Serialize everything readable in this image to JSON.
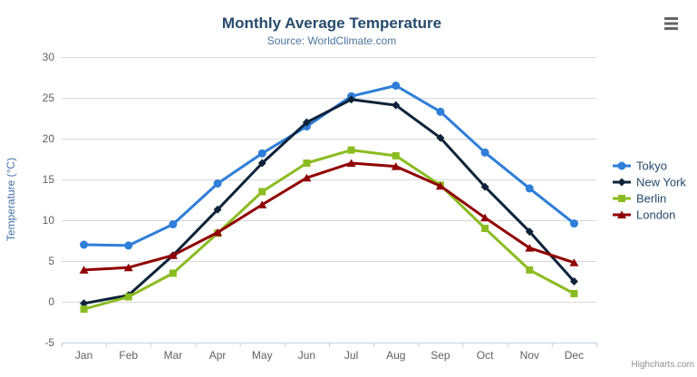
{
  "header": {
    "title": "Monthly Average Temperature",
    "subtitle": "Source: WorldClimate.com"
  },
  "menu": {
    "context_button_icon": "hamburger-icon"
  },
  "credits": {
    "label": "Highcharts.com"
  },
  "chart_data": {
    "type": "line",
    "title": "Monthly Average Temperature",
    "subtitle": "Source: WorldClimate.com",
    "categories": [
      "Jan",
      "Feb",
      "Mar",
      "Apr",
      "May",
      "Jun",
      "Jul",
      "Aug",
      "Sep",
      "Oct",
      "Nov",
      "Dec"
    ],
    "xlabel": "",
    "ylabel": "Temperature (°C)",
    "ylim": [
      -5,
      30
    ],
    "ytick_step": 5,
    "yticks": [
      -5,
      0,
      5,
      10,
      15,
      20,
      25,
      30
    ],
    "grid": true,
    "legend_position": "right",
    "series": [
      {
        "name": "Tokyo",
        "color": "#2f7ed8",
        "marker": "circle",
        "values": [
          7.0,
          6.9,
          9.5,
          14.5,
          18.2,
          21.5,
          25.2,
          26.5,
          23.3,
          18.3,
          13.9,
          9.6
        ]
      },
      {
        "name": "New York",
        "color": "#0d233a",
        "marker": "diamond",
        "values": [
          -0.2,
          0.8,
          5.7,
          11.3,
          17.0,
          22.0,
          24.8,
          24.1,
          20.1,
          14.1,
          8.6,
          2.5
        ]
      },
      {
        "name": "Berlin",
        "color": "#8bbc21",
        "marker": "square",
        "values": [
          -0.9,
          0.6,
          3.5,
          8.4,
          13.5,
          17.0,
          18.6,
          17.9,
          14.3,
          9.0,
          3.9,
          1.0
        ]
      },
      {
        "name": "London",
        "color": "#910000",
        "marker": "triangle",
        "values": [
          3.9,
          4.2,
          5.7,
          8.5,
          11.9,
          15.2,
          17.0,
          16.6,
          14.2,
          10.3,
          6.6,
          4.8
        ]
      }
    ],
    "colors": {
      "grid_line": "#d8d8d8",
      "axis_line": "#c0d0e0",
      "title": "#274b6d",
      "subtitle": "#4d759e",
      "axis_label": "#606060",
      "yaxis_title": "#4572a7",
      "legend_text": "#274b6d",
      "credits": "#909090",
      "context_button": "#666666"
    },
    "credits": "Highcharts.com"
  }
}
